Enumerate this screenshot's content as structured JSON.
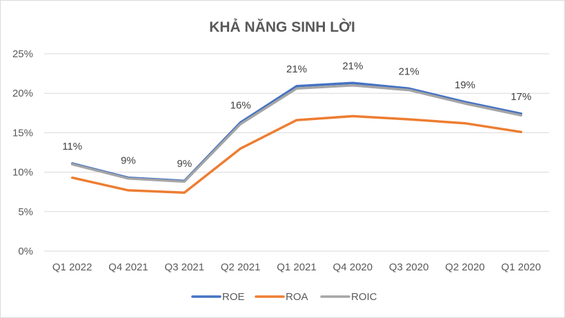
{
  "chart_data": {
    "type": "line",
    "title": "KHẢ NĂNG SINH LỜI",
    "xlabel": "",
    "ylabel": "",
    "categories": [
      "Q1 2022",
      "Q4 2021",
      "Q3 2021",
      "Q2 2021",
      "Q1 2021",
      "Q4 2020",
      "Q3 2020",
      "Q2 2020",
      "Q1 2020"
    ],
    "y_ticks": [
      "0%",
      "5%",
      "10%",
      "15%",
      "20%",
      "25%"
    ],
    "ylim": [
      0,
      25
    ],
    "grid": "horizontal",
    "legend_position": "bottom",
    "series": [
      {
        "name": "ROE",
        "color": "#4472C4",
        "values": [
          11.1,
          9.3,
          8.9,
          16.3,
          20.9,
          21.3,
          20.6,
          18.9,
          17.4
        ]
      },
      {
        "name": "ROA",
        "color": "#ED7D31",
        "values": [
          9.3,
          7.7,
          7.4,
          13.0,
          16.6,
          17.1,
          16.7,
          16.2,
          15.1
        ]
      },
      {
        "name": "ROIC",
        "color": "#A5A5A5",
        "values": [
          11.0,
          9.2,
          8.8,
          16.1,
          20.6,
          21.0,
          20.4,
          18.7,
          17.2
        ]
      }
    ],
    "data_labels": [
      "11%",
      "9%",
      "9%",
      "16%",
      "21%",
      "21%",
      "21%",
      "19%",
      "17%"
    ]
  }
}
